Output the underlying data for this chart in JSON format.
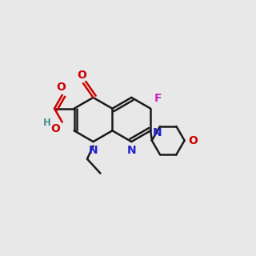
{
  "bg_color": "#e8e8e8",
  "bond_color": "#1a1a1a",
  "N_color": "#2222cc",
  "O_color": "#cc0000",
  "F_color": "#cc22cc",
  "H_color": "#4a9090",
  "lw": 1.8,
  "dbo": 0.013,
  "r": 0.092,
  "lcx": 0.355,
  "lcy": 0.535,
  "fs": 10.0,
  "fs_small": 8.5
}
